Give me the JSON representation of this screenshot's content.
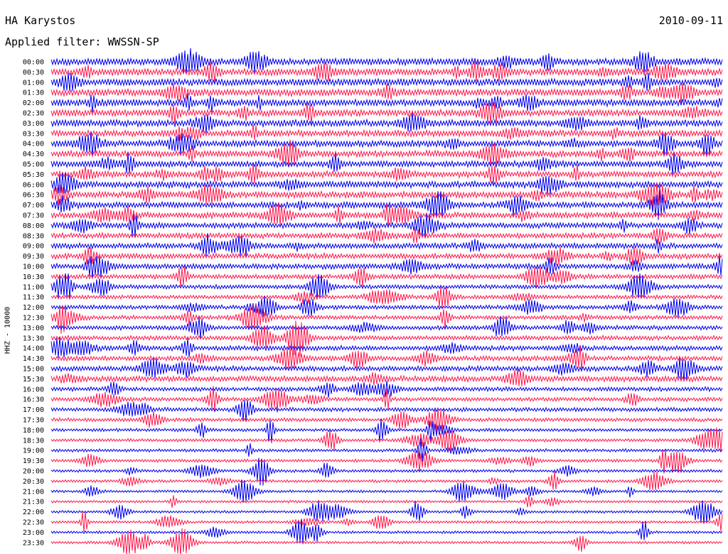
{
  "header": {
    "station": "HA Karystos",
    "date": "2010-09-11",
    "filter": "Applied filter: WWSSN-SP"
  },
  "side_label": "HHZ - 10000",
  "chart_data": {
    "type": "line",
    "title": "HA Karystos",
    "subtitle": "Applied filter: WWSSN-SP",
    "xlabel": "",
    "ylabel": "HHZ - 10000",
    "grid": false,
    "legend": "none",
    "colors": [
      "#0000ee",
      "#ff1a4d"
    ],
    "trace_rows": [
      "00:00",
      "00:30",
      "01:00",
      "01:30",
      "02:00",
      "02:30",
      "03:00",
      "03:30",
      "04:00",
      "04:30",
      "05:00",
      "05:30",
      "06:00",
      "06:30",
      "07:00",
      "07:30",
      "08:00",
      "08:30",
      "09:00",
      "09:30",
      "10:00",
      "10:30",
      "11:00",
      "11:30",
      "12:00",
      "12:30",
      "13:00",
      "13:30",
      "14:00",
      "14:30",
      "15:00",
      "15:30",
      "16:00",
      "16:30",
      "17:00",
      "17:30",
      "18:00",
      "18:30",
      "19:00",
      "19:30",
      "20:00",
      "20:30",
      "21:00",
      "21:30",
      "22:00",
      "22:30",
      "23:00",
      "23:30"
    ],
    "noise_level": [
      1.0,
      1.0,
      1.0,
      1.0,
      1.0,
      0.95,
      0.95,
      0.9,
      0.9,
      0.9,
      0.85,
      0.85,
      0.9,
      0.9,
      0.85,
      0.8,
      0.75,
      0.7,
      0.7,
      0.7,
      0.7,
      0.6,
      0.5,
      0.45,
      0.5,
      0.5,
      0.5,
      0.55,
      0.6,
      0.6,
      0.65,
      0.75,
      0.5,
      0.45,
      0.45,
      0.4,
      0.3,
      0.3,
      0.3,
      0.3,
      0.25,
      0.25,
      0.2,
      0.2,
      0.2,
      0.2,
      0.2,
      0.2
    ]
  }
}
